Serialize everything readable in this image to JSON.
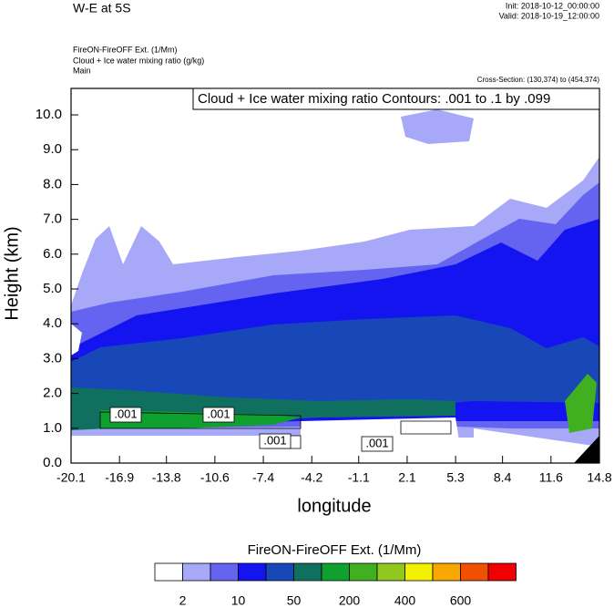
{
  "chart_data": {
    "type": "contour",
    "title": "W-E at 5S",
    "init": "Init: 2018-10-12_00:00:00",
    "valid": "Valid: 2018-10-19_12:00:00",
    "subtitle_lines": [
      "FireON-FireOFF Ext.   (1/Mm)",
      "Cloud + Ice water mixing ratio   (g/kg)",
      "Main"
    ],
    "cross_section": "Cross-Section: (130,374) to (454,374)",
    "contour_note": "Cloud + Ice water mixing ratio Contours: .001 to .1 by .099",
    "contour_labels": [
      ".001",
      ".001",
      ".001",
      ".001"
    ],
    "x_label": "longitude",
    "y_label": "Height (km)",
    "xlim": [
      -20.1,
      14.8
    ],
    "xticks": [
      -20.1,
      -16.9,
      -13.8,
      -10.6,
      -7.4,
      -4.2,
      -1.1,
      2.1,
      5.3,
      8.4,
      11.6,
      14.8
    ],
    "ylim": [
      0,
      10.76
    ],
    "yticks": [
      {
        "value": 0,
        "label": "0.0"
      },
      {
        "value": 1,
        "label": "1.0"
      },
      {
        "value": 2,
        "label": "2.0"
      },
      {
        "value": 3,
        "label": "3.0"
      },
      {
        "value": 4,
        "label": "4.0"
      },
      {
        "value": 5,
        "label": "5.0"
      },
      {
        "value": 6,
        "label": "6.0"
      },
      {
        "value": 7,
        "label": "7.0"
      },
      {
        "value": 8,
        "label": "8.0"
      },
      {
        "value": 9,
        "label": "9.0"
      },
      {
        "value": 10,
        "label": "10.0"
      }
    ],
    "colorbar": {
      "title": "FireON-FireOFF Ext.  (1/Mm)",
      "colors": [
        "#ffffff",
        "#a8a8f8",
        "#6464f0",
        "#1414f0",
        "#1848b8",
        "#107060",
        "#10a030",
        "#40b020",
        "#90c820",
        "#f0f000",
        "#f8a800",
        "#f05000",
        "#f00000"
      ],
      "ticks": [
        2,
        10,
        50,
        200,
        400,
        600
      ]
    }
  }
}
